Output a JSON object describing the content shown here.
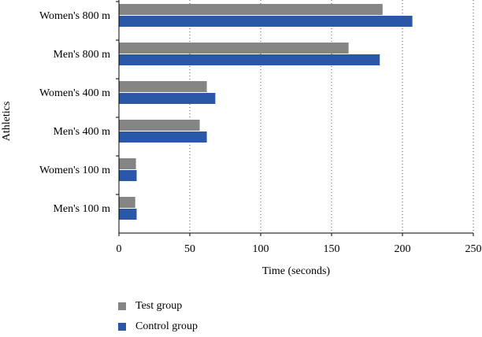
{
  "chart_data": {
    "type": "bar",
    "orientation": "horizontal",
    "categories": [
      "Women's 800 m",
      "Men's 800 m",
      "Women's 400 m",
      "Men's 400 m",
      "Women's 100 m",
      "Men's 100 m"
    ],
    "series": [
      {
        "name": "Test group",
        "values": [
          186,
          162,
          62,
          57,
          12,
          11.5
        ],
        "color": "#858585"
      },
      {
        "name": "Control group",
        "values": [
          207,
          184,
          68,
          62,
          12.5,
          12.5
        ],
        "color": "#2b58a6"
      }
    ],
    "xlabel": "Time (seconds)",
    "ylabel": "Athletics",
    "xlim": [
      0,
      250
    ],
    "xticks": [
      0,
      50,
      100,
      150,
      200,
      250
    ],
    "grid": "vertical dotted",
    "legend_position": "bottom-left"
  }
}
